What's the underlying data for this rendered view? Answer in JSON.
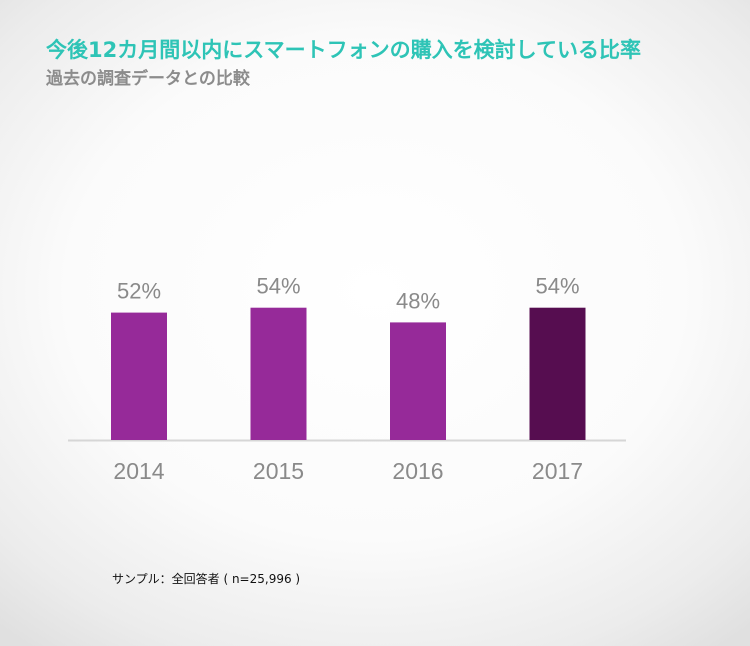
{
  "header": {
    "title": "今後12カ月間以内にスマートフォンの購入を検討している比率",
    "subtitle": "過去の調査データとの比較"
  },
  "footnote": "サンプル：全回答者 ( n=25,996 )",
  "colors": {
    "title": "#2ec4b6",
    "bar": "#962a99",
    "bar_highlight": "#560d50",
    "label": "#8a8a8a",
    "axis": "#d6d6d6"
  },
  "chart_data": {
    "type": "bar",
    "title": "今後12カ月間以内にスマートフォンの購入を検討している比率",
    "subtitle": "過去の調査データとの比較",
    "categories": [
      "2014",
      "2015",
      "2016",
      "2017"
    ],
    "values": [
      52,
      54,
      48,
      54
    ],
    "value_labels": [
      "52%",
      "54%",
      "48%",
      "54%"
    ],
    "highlight_index": 3,
    "xlabel": "",
    "ylabel": "",
    "ylim": [
      0,
      100
    ],
    "grid": false,
    "legend": "none"
  }
}
